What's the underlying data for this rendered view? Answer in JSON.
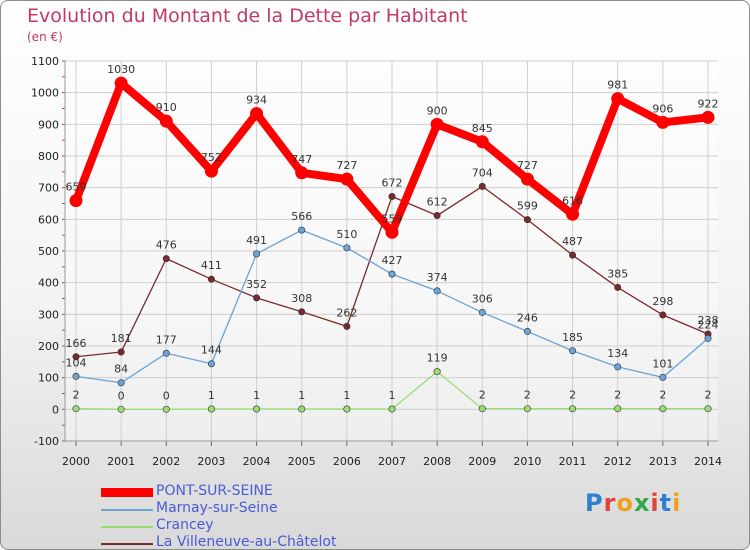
{
  "header": {
    "title": "Evolution du Montant de la Dette par Habitant",
    "unit": "(en €)"
  },
  "logo": {
    "text": "Proxiti",
    "letter_colors": [
      "#2f7fd0",
      "#e0453b",
      "#f0a020",
      "#33a84a",
      "#e0453b",
      "#2f7fd0",
      "#f0a020"
    ]
  },
  "chart_data": {
    "type": "line",
    "title": "Evolution du Montant de la Dette par Habitant",
    "subtitle": "(en €)",
    "x": [
      "2000",
      "2001",
      "2002",
      "2003",
      "2004",
      "2005",
      "2006",
      "2007",
      "2008",
      "2009",
      "2010",
      "2011",
      "2012",
      "2013",
      "2014"
    ],
    "ylim": [
      -100,
      1100
    ],
    "yticks": [
      -100,
      0,
      100,
      200,
      300,
      400,
      500,
      600,
      700,
      800,
      900,
      1000,
      1100
    ],
    "grid": true,
    "legend": "bottom-left",
    "series": [
      {
        "name": "PONT-SUR-SEINE",
        "color": "#ff0000",
        "width": 8,
        "values": [
          659,
          1030,
          910,
          752,
          934,
          747,
          727,
          559,
          900,
          845,
          727,
          616,
          981,
          906,
          922
        ],
        "labels": [
          "659",
          "1030",
          "910",
          "752",
          "934",
          "747",
          "727",
          "559",
          "900",
          "845",
          "727",
          "616",
          "981",
          "906",
          "922"
        ]
      },
      {
        "name": "Marnay-sur-Seine",
        "color": "#6ba3d6",
        "width": 1.3,
        "values": [
          104,
          84,
          177,
          144,
          491,
          566,
          510,
          427,
          374,
          306,
          246,
          185,
          134,
          101,
          224
        ],
        "labels": [
          "104",
          "84",
          "177",
          "144",
          "491",
          "566",
          "510",
          "427",
          "374",
          "306",
          "246",
          "185",
          "134",
          "101",
          "224"
        ]
      },
      {
        "name": "Crancey",
        "color": "#99dd77",
        "width": 1.3,
        "values": [
          2,
          0,
          0,
          1,
          1,
          1,
          1,
          1,
          119,
          2,
          2,
          2,
          2,
          2,
          2
        ],
        "labels": [
          "2",
          "0",
          "0",
          "1",
          "1",
          "1",
          "1",
          "1",
          "119",
          "2",
          "2",
          "2",
          "2",
          "2",
          "2"
        ]
      },
      {
        "name": "La Villeneuve-au-Châtelot",
        "color": "#7a2a2a",
        "width": 1.3,
        "values": [
          166,
          181,
          476,
          411,
          352,
          308,
          262,
          672,
          612,
          704,
          599,
          487,
          385,
          298,
          238
        ],
        "labels": [
          "166",
          "181",
          "476",
          "411",
          "352",
          "308",
          "262",
          "672",
          "612",
          "704",
          "599",
          "487",
          "385",
          "298",
          "238"
        ]
      }
    ]
  },
  "legend_items": [
    {
      "label": "PONT-SUR-SEINE",
      "color": "#ff0000"
    },
    {
      "label": "Marnay-sur-Seine",
      "color": "#6ba3d6"
    },
    {
      "label": "Crancey",
      "color": "#99dd77"
    },
    {
      "label": "La Villeneuve-au-Châtelot",
      "color": "#7a2a2a"
    }
  ]
}
